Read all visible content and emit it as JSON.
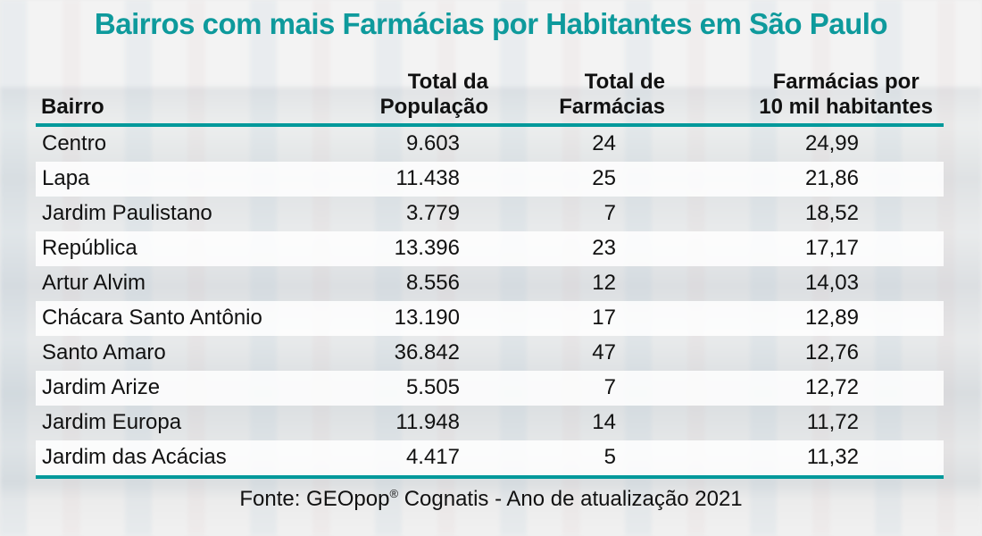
{
  "title": "Bairros com mais Farmácias por Habitantes em São Paulo",
  "accent_color": "#00999b",
  "columns": [
    "Bairro",
    "Total da\nPopulação",
    "Total de\nFarmácias",
    "Farmácias por\n10 mil habitantes"
  ],
  "column_lines": [
    [
      "Bairro"
    ],
    [
      "Total da",
      "População"
    ],
    [
      "Total de",
      "Farmácias"
    ],
    [
      "Farmácias por",
      "10 mil habitantes"
    ]
  ],
  "rows": [
    [
      "Centro",
      "9.603",
      "24",
      "24,99"
    ],
    [
      "Lapa",
      "11.438",
      "25",
      "21,86"
    ],
    [
      "Jardim Paulistano",
      "3.779",
      "7",
      "18,52"
    ],
    [
      "República",
      "13.396",
      "23",
      "17,17"
    ],
    [
      "Artur Alvim",
      "8.556",
      "12",
      "14,03"
    ],
    [
      "Chácara Santo Antônio",
      "13.190",
      "17",
      "12,89"
    ],
    [
      "Santo Amaro",
      "36.842",
      "47",
      "12,76"
    ],
    [
      "Jardim Arize",
      "5.505",
      "7",
      "12,72"
    ],
    [
      "Jardim Europa",
      "11.948",
      "14",
      "11,72"
    ],
    [
      "Jardim das Acácias",
      "4.417",
      "5",
      "11,32"
    ]
  ],
  "source": {
    "prefix": "Fonte: GEOpop",
    "mark": "®",
    "suffix": " Cognatis - Ano de atualização 2021"
  },
  "chart_data": {
    "type": "table",
    "title": "Bairros com mais Farmácias por Habitantes em São Paulo",
    "headers": [
      "Bairro",
      "Total da População",
      "Total de Farmácias",
      "Farmácias por 10 mil habitantes"
    ],
    "rows": [
      [
        "Centro",
        9603,
        24,
        24.99
      ],
      [
        "Lapa",
        11438,
        25,
        21.86
      ],
      [
        "Jardim Paulistano",
        3779,
        7,
        18.52
      ],
      [
        "República",
        13396,
        23,
        17.17
      ],
      [
        "Artur Alvim",
        8556,
        12,
        14.03
      ],
      [
        "Chácara Santo Antônio",
        13190,
        17,
        12.89
      ],
      [
        "Santo Amaro",
        36842,
        47,
        12.76
      ],
      [
        "Jardim Arize",
        5505,
        7,
        12.72
      ],
      [
        "Jardim Europa",
        11948,
        14,
        11.72
      ],
      [
        "Jardim das Acácias",
        4417,
        5,
        11.32
      ]
    ]
  }
}
